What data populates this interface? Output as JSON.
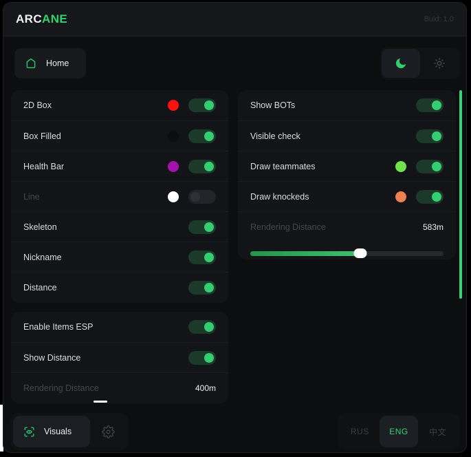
{
  "header": {
    "logo_prefix": "ARC",
    "logo_suffix": "ANE",
    "build_label": "Buid: 1.0"
  },
  "nav": {
    "home_label": "Home",
    "theme": {
      "active": "dark"
    }
  },
  "icons": {
    "home": "home-outline",
    "moon": "crescent-moon-with-sparkle",
    "sun": "sun",
    "visuals": "eye-in-scan-frame",
    "settings": "gear"
  },
  "colors": {
    "accent_green": "#2fd46c",
    "toggle_knob_on": "#35cd72",
    "scrollbar": "#3ecf7c",
    "swatch_red": "#fe1111",
    "swatch_black": "#0b0d0f",
    "swatch_purple": "#a312ac",
    "swatch_white": "#ffffff",
    "swatch_lime": "#72e24a",
    "swatch_orange": "#ee8051"
  },
  "esp_panel": {
    "rows": [
      {
        "label": "2D Box",
        "swatch": "#fe1111",
        "state": "on"
      },
      {
        "label": "Box Filled",
        "swatch": "#0b0d0f",
        "state": "on"
      },
      {
        "label": "Health Bar",
        "swatch": "#a312ac",
        "state": "on"
      },
      {
        "label": "Line",
        "swatch": "#ffffff",
        "state": "off"
      },
      {
        "label": "Skeleton",
        "state": "on"
      },
      {
        "label": "Nickname",
        "state": "on"
      },
      {
        "label": "Distance",
        "state": "on"
      }
    ]
  },
  "items_panel": {
    "rows": [
      {
        "label": "Enable Items ESP",
        "state": "on"
      },
      {
        "label": "Show Distance",
        "state": "on"
      }
    ],
    "slider": {
      "label": "Rendering Distance",
      "value": "400m",
      "percent": 41
    }
  },
  "right_panel": {
    "rows": [
      {
        "label": "Show BOTs",
        "state": "on"
      },
      {
        "label": "Visible check",
        "state": "on"
      },
      {
        "label": "Draw teammates",
        "swatch": "#72e24a",
        "state": "on"
      },
      {
        "label": "Draw knockeds",
        "swatch": "#ee8051",
        "state": "on"
      }
    ],
    "slider": {
      "label": "Rendering Distance",
      "value": "583m",
      "percent": 57
    }
  },
  "footer": {
    "visuals_label": "Visuals",
    "languages": [
      {
        "label": "RUS",
        "active": false
      },
      {
        "label": "ENG",
        "active": true
      },
      {
        "label": "中文",
        "active": false
      }
    ]
  }
}
